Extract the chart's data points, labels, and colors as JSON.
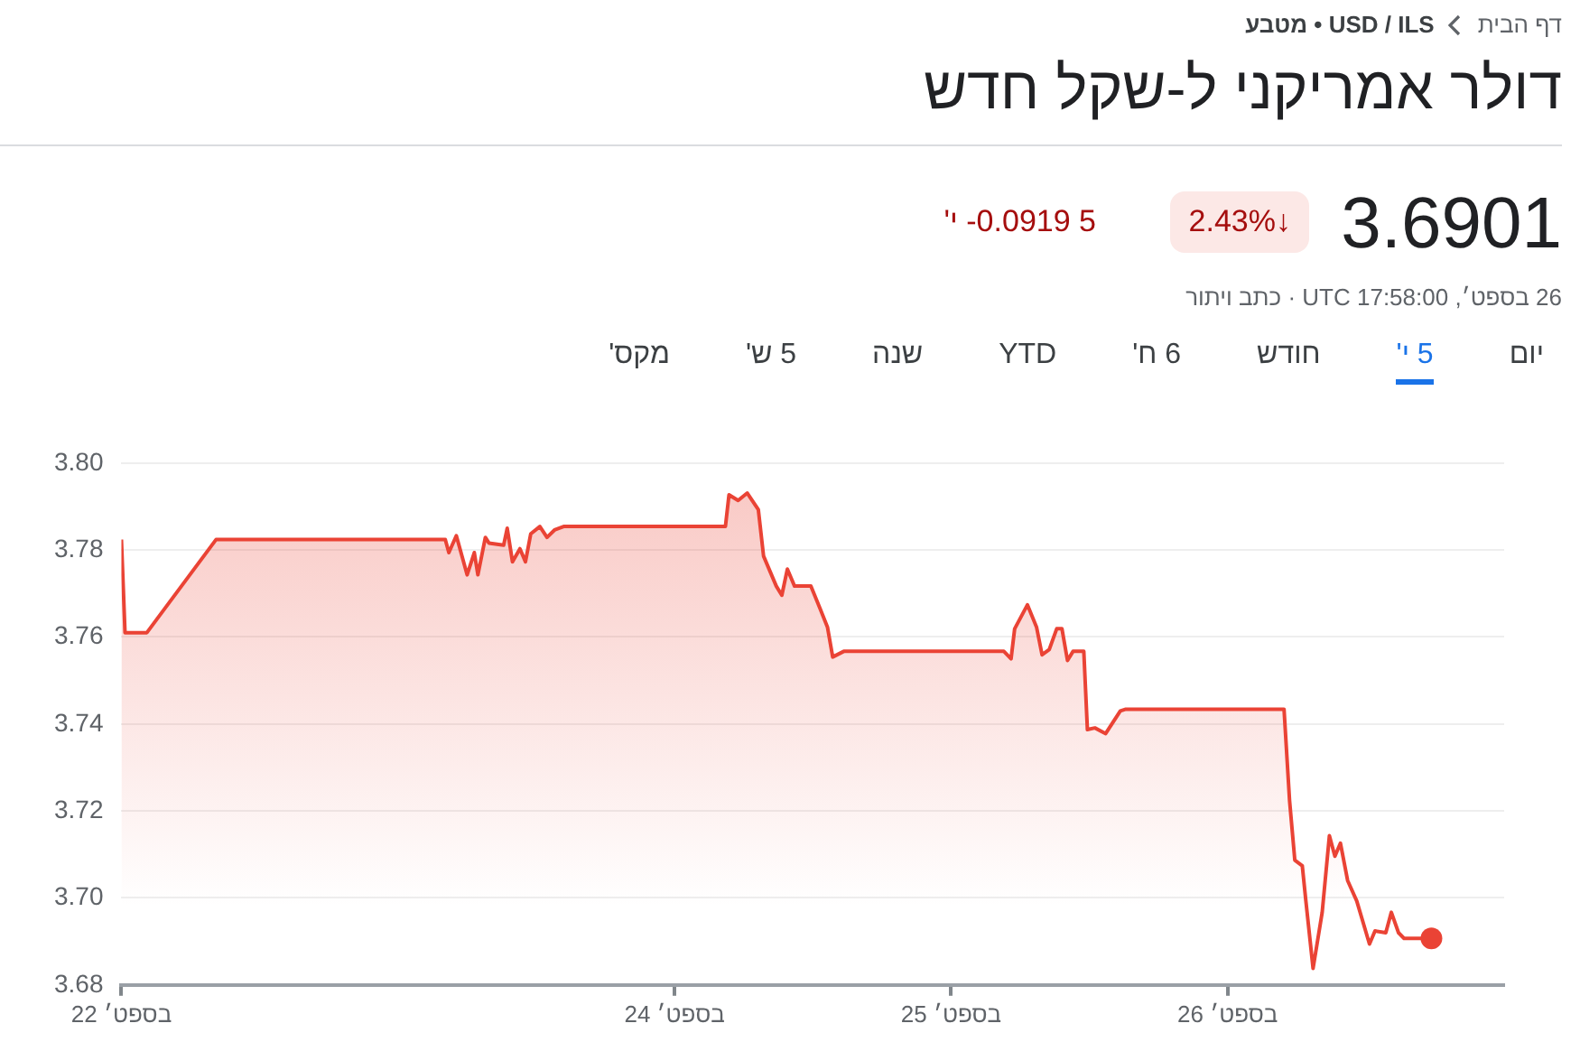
{
  "chart_data": {
    "type": "area",
    "title": "דולר אמריקני ל-שקל חדש",
    "subtitle": "USD / ILS • מטבע",
    "annotations": [
      "דף הבית",
      "3.6901",
      "2.43%↓",
      "'י -0.0919 5",
      "26 בספט׳, UTC 17:58:00 · כתב ויתור",
      "יום",
      "5 י'",
      "חודש",
      "6 ח'",
      "YTD",
      "שנה",
      "5 ש'",
      "מקס'"
    ],
    "series": [
      {
        "color": "#ea4335",
        "x": [
          22.0,
          22.013,
          22.092,
          22.342,
          23.171,
          23.184,
          23.211,
          23.25,
          23.276,
          23.289,
          23.316,
          23.329,
          23.382,
          23.395,
          23.414,
          23.441,
          23.461,
          23.48,
          23.513,
          23.539,
          23.566,
          23.599,
          24.184,
          24.197,
          24.23,
          24.263,
          24.303,
          24.322,
          24.368,
          24.388,
          24.408,
          24.434,
          24.493,
          24.526,
          24.553,
          24.572,
          24.612,
          25.191,
          25.217,
          25.23,
          25.276,
          25.309,
          25.329,
          25.355,
          25.382,
          25.401,
          25.421,
          25.441,
          25.48,
          25.493,
          25.52,
          25.559,
          25.612,
          25.632,
          26.204,
          26.224,
          26.243,
          26.27,
          26.283,
          26.309,
          26.342,
          26.368,
          26.388,
          26.408,
          26.434,
          26.467,
          26.513,
          26.533,
          26.572,
          26.592,
          26.618,
          26.638,
          26.737
        ],
        "values": [
          3.7824,
          3.761,
          3.761,
          3.7824,
          3.7824,
          3.7794,
          3.7833,
          3.7743,
          3.7794,
          3.7743,
          3.7829,
          3.7816,
          3.7811,
          3.785,
          3.7773,
          3.7803,
          3.7773,
          3.7837,
          3.7854,
          3.7829,
          3.7846,
          3.7854,
          3.7854,
          3.7927,
          3.7914,
          3.7931,
          3.7893,
          3.7786,
          3.7717,
          3.7696,
          3.7756,
          3.7717,
          3.7717,
          3.7666,
          3.7623,
          3.7554,
          3.7567,
          3.7567,
          3.755,
          3.7619,
          3.7674,
          3.7623,
          3.7559,
          3.7571,
          3.7619,
          3.7619,
          3.7546,
          3.7567,
          3.7567,
          3.7387,
          3.7391,
          3.7378,
          3.743,
          3.7434,
          3.7434,
          3.7224,
          3.7087,
          3.7074,
          3.6993,
          3.6838,
          3.6967,
          3.7143,
          3.7096,
          3.7126,
          3.704,
          3.6993,
          3.6894,
          3.6924,
          3.692,
          3.6967,
          3.692,
          3.6907,
          3.6907
        ]
      }
    ],
    "xlim": [
      22,
      27
    ],
    "xticks": [
      {
        "value": 22,
        "label": "22 בספט׳"
      },
      {
        "value": 24,
        "label": "24 בספט׳"
      },
      {
        "value": 25,
        "label": "25 בספט׳"
      },
      {
        "value": 26,
        "label": "26 בספט׳"
      }
    ],
    "ylim": [
      3.68,
      3.8
    ],
    "yticks": [
      {
        "value": 3.68,
        "label": "3.68"
      },
      {
        "value": 3.7,
        "label": "3.70"
      },
      {
        "value": 3.72,
        "label": "3.72"
      },
      {
        "value": 3.74,
        "label": "3.74"
      },
      {
        "value": 3.76,
        "label": "3.76"
      },
      {
        "value": 3.78,
        "label": "3.78"
      },
      {
        "value": 3.8,
        "label": "3.80"
      }
    ],
    "grid": "y",
    "legend": false
  }
}
